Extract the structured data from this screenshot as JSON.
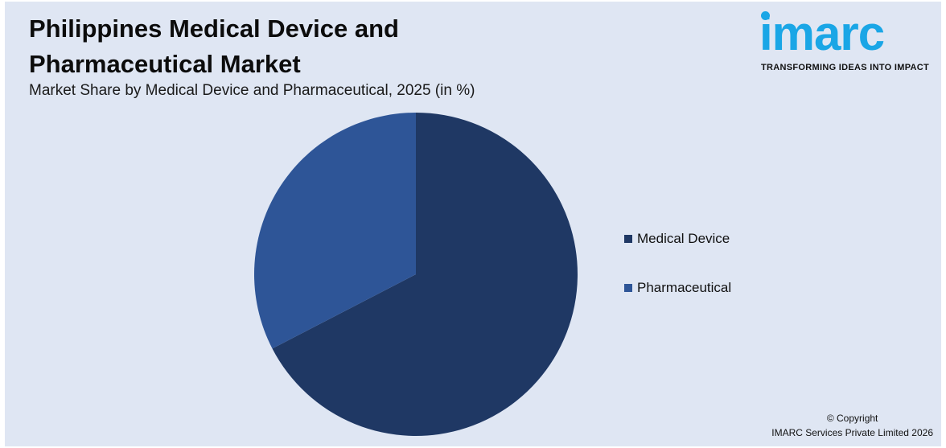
{
  "header": {
    "title": "Philippines Medical Device and Pharmaceutical Market",
    "subtitle": "Market Share by Medical Device and Pharmaceutical, 2025 (in %)"
  },
  "logo": {
    "wordmark": "imarc",
    "tagline": "TRANSFORMING IDEAS INTO IMPACT",
    "color": "#1aa6e6"
  },
  "chart_data": {
    "type": "pie",
    "categories": [
      "Medical Device",
      "Pharmaceutical"
    ],
    "values": [
      67.4,
      32.6
    ],
    "colors": [
      "#1f3864",
      "#2e5597"
    ],
    "legend_position": "right",
    "start_angle": "12 o'clock",
    "direction": "clockwise"
  },
  "footer": {
    "copyright_line1": "© Copyright",
    "copyright_line2": "IMARC Services Private Limited 2026"
  }
}
